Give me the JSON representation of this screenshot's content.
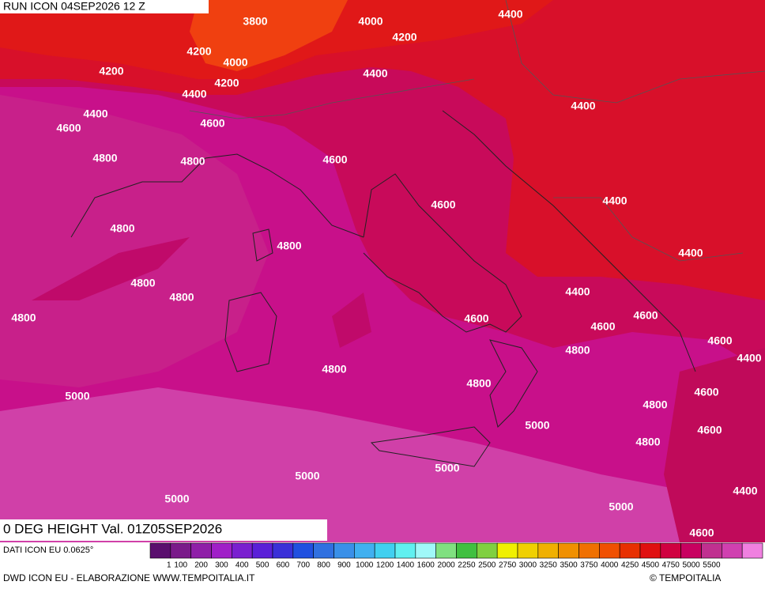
{
  "header": {
    "run": "RUN ICON 04SEP2026 12 Z",
    "title": "0 DEG HEIGHT Val. 01Z05SEP2026"
  },
  "contour_labels": [
    "3800",
    "4000",
    "4400",
    "4200",
    "4200",
    "4000",
    "4200",
    "4400",
    "4200",
    "4400",
    "4400",
    "4400",
    "4600",
    "4600",
    "4800",
    "4800",
    "4600",
    "4400",
    "4600",
    "4800",
    "4800",
    "4400",
    "4800",
    "4400",
    "4800",
    "4800",
    "4600",
    "4600",
    "4600",
    "4600",
    "4800",
    "4400",
    "4800",
    "4800",
    "4600",
    "5000",
    "5000",
    "4800",
    "4600",
    "4800",
    "5000",
    "5000",
    "5000",
    "4400",
    "5000",
    "4600"
  ],
  "legend": {
    "colors": [
      "#5a0f6e",
      "#7a1a8a",
      "#8f1fa8",
      "#a020c8",
      "#7a20d0",
      "#5a20d8",
      "#3a30d8",
      "#2050e0",
      "#3070e0",
      "#3a90e8",
      "#40b0f0",
      "#40d0f0",
      "#60f0f0",
      "#a0f8f8",
      "#80e080",
      "#40c040",
      "#80d040",
      "#f0f000",
      "#f0d000",
      "#f0b000",
      "#f09000",
      "#f07000",
      "#f05000",
      "#e83000",
      "#e01010",
      "#d00040",
      "#c80060",
      "#c03090",
      "#d040b0",
      "#f080e0"
    ],
    "labels": [
      "1",
      "100",
      "200",
      "300",
      "400",
      "500",
      "600",
      "700",
      "800",
      "900",
      "1000",
      "1200",
      "1400",
      "1600",
      "2000",
      "2250",
      "2500",
      "2750",
      "3000",
      "3250",
      "3500",
      "3750",
      "4000",
      "4250",
      "4500",
      "4750",
      "5000",
      "5500"
    ]
  },
  "footer": {
    "source": "DATI ICON EU 0.0625°",
    "credit": "DWD ICON EU - ELABORAZIONE WWW.TEMPOITALIA.IT",
    "copyright": "© TEMPOITALIA"
  }
}
